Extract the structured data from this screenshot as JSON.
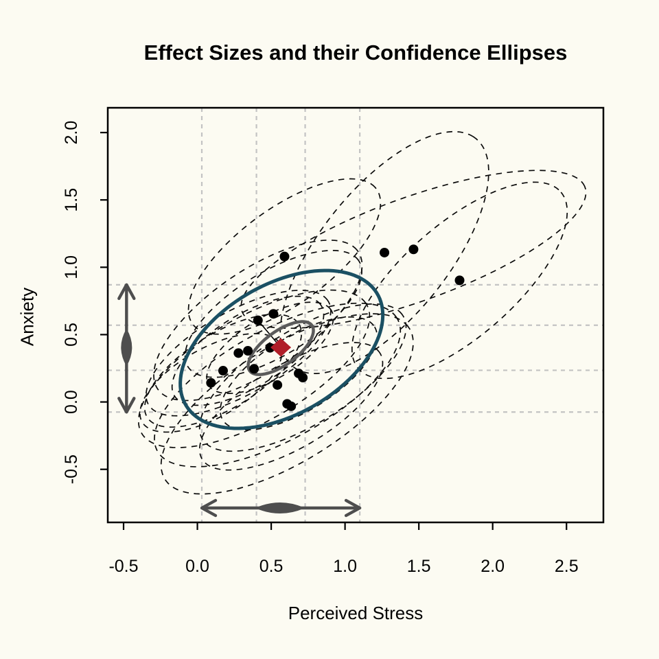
{
  "chart_data": {
    "type": "scatter",
    "title": "Effect Sizes and their Confidence Ellipses",
    "xlabel": "Perceived Stress",
    "ylabel": "Anxiety",
    "x_axis": {
      "lim": [
        -0.607,
        2.75
      ],
      "ticks": [
        {
          "value": -0.5,
          "label": "-0.5"
        },
        {
          "value": 0.0,
          "label": "0.0"
        },
        {
          "value": 0.5,
          "label": "0.5"
        },
        {
          "value": 1.0,
          "label": "1.0"
        },
        {
          "value": 1.5,
          "label": "1.5"
        },
        {
          "value": 2.0,
          "label": "2.0"
        },
        {
          "value": 2.5,
          "label": "2.5"
        }
      ]
    },
    "y_axis": {
      "lim": [
        -0.894,
        2.184
      ],
      "ticks": [
        {
          "value": -0.5,
          "label": "-0.5"
        },
        {
          "value": 0.0,
          "label": "0.0"
        },
        {
          "value": 0.5,
          "label": "0.5"
        },
        {
          "value": 1.0,
          "label": "1.0"
        },
        {
          "value": 1.5,
          "label": "1.5"
        },
        {
          "value": 2.0,
          "label": "2.0"
        }
      ]
    },
    "gridlines": {
      "x": [
        0.03,
        0.4,
        0.73,
        1.1
      ],
      "y": [
        -0.075,
        0.235,
        0.57,
        0.87
      ]
    },
    "points": [
      [
        0.59,
        1.08
      ],
      [
        1.267,
        1.109
      ],
      [
        1.464,
        1.133
      ],
      [
        1.776,
        0.903
      ],
      [
        0.515,
        0.654
      ],
      [
        0.41,
        0.606
      ],
      [
        0.342,
        0.38
      ],
      [
        0.278,
        0.363
      ],
      [
        0.174,
        0.232
      ],
      [
        0.092,
        0.142
      ],
      [
        0.492,
        0.402
      ],
      [
        0.384,
        0.246
      ],
      [
        0.686,
        0.212
      ],
      [
        0.714,
        0.181
      ],
      [
        0.542,
        0.126
      ],
      [
        0.608,
        -0.014
      ],
      [
        0.635,
        -0.032
      ]
    ],
    "study_ellipses": [
      {
        "cx": 0.59,
        "cy": 1.08,
        "a": 0.8,
        "b": 0.34,
        "angle": 40
      },
      {
        "cx": 1.267,
        "cy": 1.109,
        "a": 1.05,
        "b": 0.45,
        "angle": 55
      },
      {
        "cx": 1.464,
        "cy": 1.133,
        "a": 1.25,
        "b": 0.38,
        "angle": 22
      },
      {
        "cx": 1.776,
        "cy": 0.903,
        "a": 0.95,
        "b": 0.4,
        "angle": 45
      },
      {
        "cx": 0.515,
        "cy": 0.654,
        "a": 0.7,
        "b": 0.3,
        "angle": 35
      },
      {
        "cx": 0.41,
        "cy": 0.606,
        "a": 0.85,
        "b": 0.36,
        "angle": 38
      },
      {
        "cx": 0.342,
        "cy": 0.38,
        "a": 0.6,
        "b": 0.26,
        "angle": 35
      },
      {
        "cx": 0.278,
        "cy": 0.363,
        "a": 0.72,
        "b": 0.3,
        "angle": 33
      },
      {
        "cx": 0.174,
        "cy": 0.232,
        "a": 0.62,
        "b": 0.27,
        "angle": 35
      },
      {
        "cx": 0.092,
        "cy": 0.142,
        "a": 0.55,
        "b": 0.25,
        "angle": 33
      },
      {
        "cx": 0.492,
        "cy": 0.402,
        "a": 0.5,
        "b": 0.22,
        "angle": 35
      },
      {
        "cx": 0.384,
        "cy": 0.246,
        "a": 0.9,
        "b": 0.38,
        "angle": 33
      },
      {
        "cx": 0.686,
        "cy": 0.212,
        "a": 0.62,
        "b": 0.27,
        "angle": 35
      },
      {
        "cx": 0.714,
        "cy": 0.181,
        "a": 0.82,
        "b": 0.34,
        "angle": 35
      },
      {
        "cx": 0.542,
        "cy": 0.126,
        "a": 0.95,
        "b": 0.4,
        "angle": 32
      },
      {
        "cx": 0.608,
        "cy": -0.014,
        "a": 1.0,
        "b": 0.42,
        "angle": 35
      },
      {
        "cx": 0.635,
        "cy": -0.032,
        "a": 0.72,
        "b": 0.3,
        "angle": 34
      }
    ],
    "prediction_ellipse": {
      "cx": 0.57,
      "cy": 0.39,
      "a": 0.77,
      "b": 0.47,
      "angle": 35
    },
    "mean_ci_ellipse": {
      "cx": 0.565,
      "cy": 0.4,
      "a": 0.27,
      "b": 0.12,
      "angle": 40
    },
    "pooled_diamond": {
      "x": 0.565,
      "y": 0.405
    },
    "connector_line": {
      "x1": 0.41,
      "y1": 0.606,
      "x2": 0.565,
      "y2": 0.405
    },
    "interval_arrows": {
      "x": {
        "from": 0.03,
        "to": 1.1,
        "at": -0.787,
        "density_center": 0.56,
        "density_halfspan": 0.163
      },
      "y": {
        "from": -0.075,
        "to": 0.87,
        "at": -0.48,
        "density_center": 0.405,
        "density_halfspan": 0.135
      }
    },
    "colors": {
      "background": "#FCFBF2",
      "axis": "#000000",
      "grid": "#C3C3C3",
      "study_ellipse": "#0A0A0A",
      "prediction_ellipse": "#1B5063",
      "mean_ci_ellipse": "#5B5B5B",
      "points": "#000000",
      "diamond": "#B01E28",
      "arrows": "#4E4E4E"
    }
  }
}
